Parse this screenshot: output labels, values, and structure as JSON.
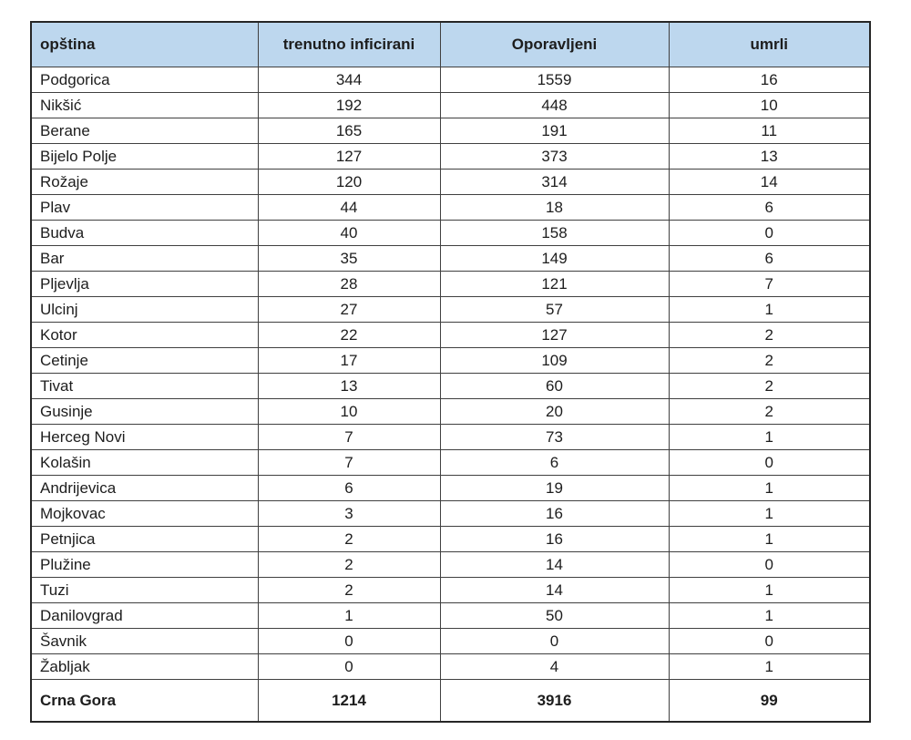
{
  "colors": {
    "header_bg": "#bdd7ee",
    "border": "#404040",
    "outer_border": "#262626",
    "text": "#1d1d1d"
  },
  "chart_data": {
    "type": "table",
    "columns": [
      "opština",
      "trenutno inficirani",
      "Oporavljeni",
      "umrli"
    ],
    "rows": [
      [
        "Podgorica",
        344,
        1559,
        16
      ],
      [
        "Nikšić",
        192,
        448,
        10
      ],
      [
        "Berane",
        165,
        191,
        11
      ],
      [
        "Bijelo Polje",
        127,
        373,
        13
      ],
      [
        "Rožaje",
        120,
        314,
        14
      ],
      [
        "Plav",
        44,
        18,
        6
      ],
      [
        "Budva",
        40,
        158,
        0
      ],
      [
        "Bar",
        35,
        149,
        6
      ],
      [
        "Pljevlja",
        28,
        121,
        7
      ],
      [
        "Ulcinj",
        27,
        57,
        1
      ],
      [
        "Kotor",
        22,
        127,
        2
      ],
      [
        "Cetinje",
        17,
        109,
        2
      ],
      [
        "Tivat",
        13,
        60,
        2
      ],
      [
        "Gusinje",
        10,
        20,
        2
      ],
      [
        "Herceg Novi",
        7,
        73,
        1
      ],
      [
        "Kolašin",
        7,
        6,
        0
      ],
      [
        "Andrijevica",
        6,
        19,
        1
      ],
      [
        "Mojkovac",
        3,
        16,
        1
      ],
      [
        "Petnjica",
        2,
        16,
        1
      ],
      [
        "Plužine",
        2,
        14,
        0
      ],
      [
        "Tuzi",
        2,
        14,
        1
      ],
      [
        "Danilovgrad",
        1,
        50,
        1
      ],
      [
        "Šavnik",
        0,
        0,
        0
      ],
      [
        "Žabljak",
        0,
        4,
        1
      ]
    ],
    "total_row": [
      "Crna Gora",
      1214,
      3916,
      99
    ]
  }
}
